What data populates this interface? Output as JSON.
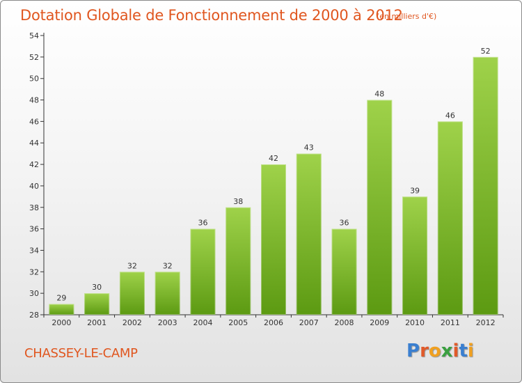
{
  "title": "Dotation Globale de Fonctionnement de 2000 à 2012",
  "subtitle": "(en milliers d'€)",
  "commune": "CHASSEY-LE-CAMP",
  "logo": {
    "letters": [
      "P",
      "r",
      "o",
      "x",
      "i",
      "t",
      "i"
    ],
    "colors": [
      "#3a7fd0",
      "#e05a2a",
      "#f0a020",
      "#3aa040",
      "#e05a2a",
      "#3a7fd0",
      "#f0a020"
    ]
  },
  "chart_data": {
    "type": "bar",
    "categories": [
      "2000",
      "2001",
      "2002",
      "2003",
      "2004",
      "2005",
      "2006",
      "2007",
      "2008",
      "2009",
      "2010",
      "2011",
      "2012"
    ],
    "values": [
      29,
      30,
      32,
      32,
      36,
      38,
      42,
      43,
      36,
      48,
      39,
      46,
      52
    ],
    "title": "Dotation Globale de Fonctionnement de 2000 à 2012",
    "xlabel": "",
    "ylabel": "",
    "ylim": [
      28,
      54
    ],
    "yticks": [
      28,
      30,
      32,
      34,
      36,
      38,
      40,
      42,
      44,
      46,
      48,
      50,
      52,
      54
    ],
    "grid": false,
    "bar_color": "#7fbf2f"
  }
}
